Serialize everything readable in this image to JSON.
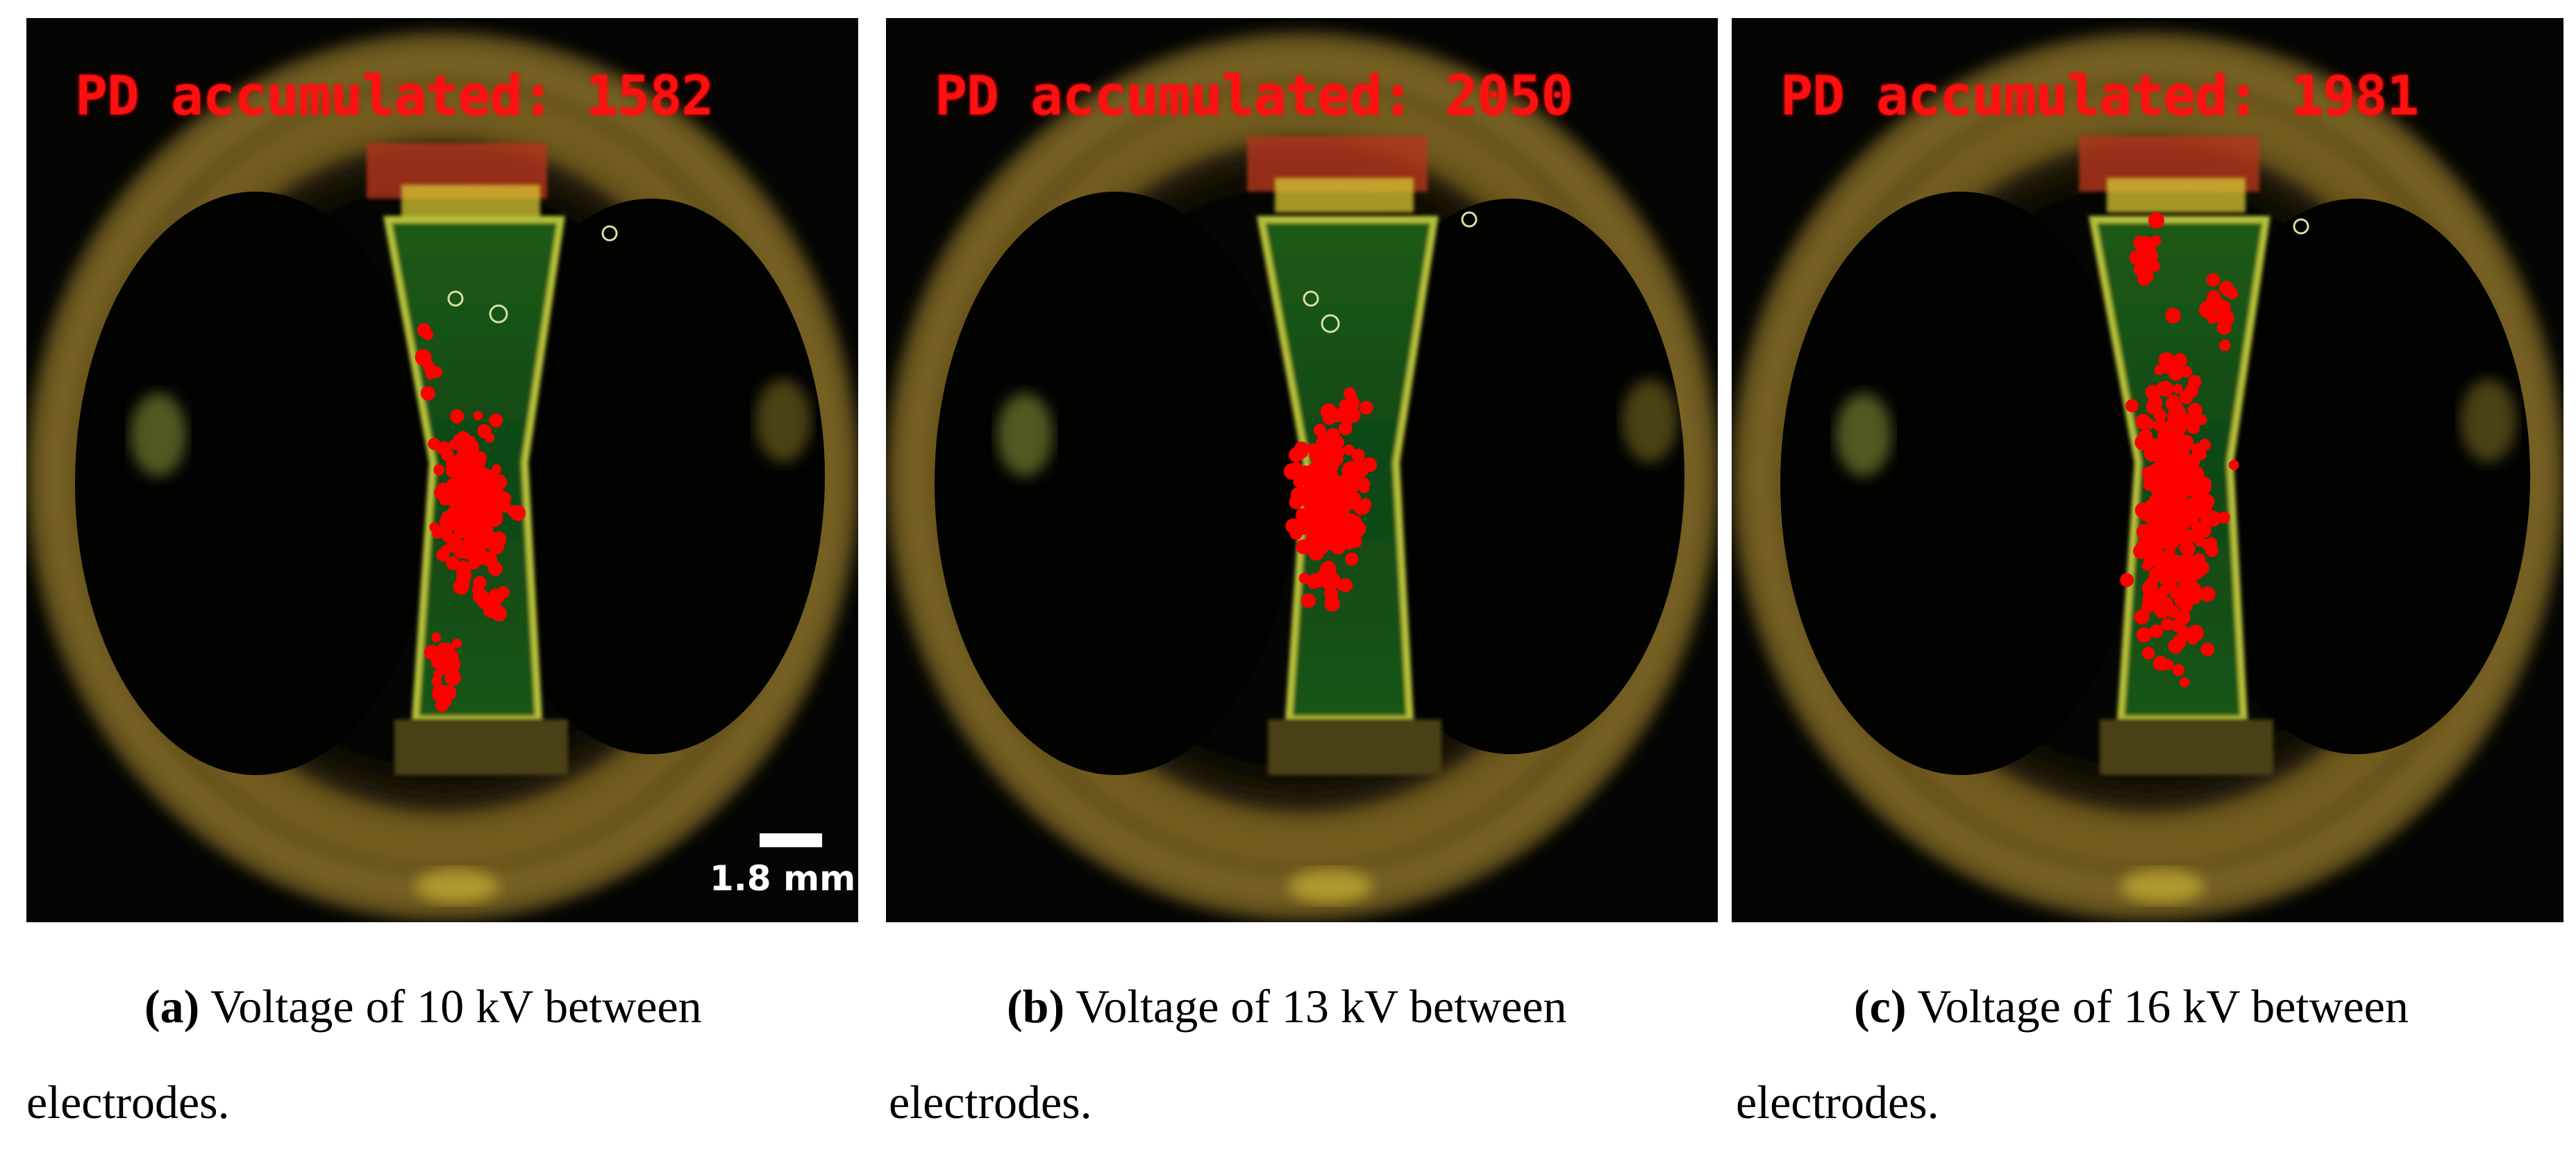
{
  "panels": [
    {
      "id": "a",
      "overlay_text": "PD accumulated: 1582",
      "caption_tag": "(a)",
      "caption_text": "Voltage of 10 kV between",
      "caption_text_line2": "electrodes."
    },
    {
      "id": "b",
      "overlay_text": "PD accumulated: 2050",
      "caption_tag": "(b)",
      "caption_text": "Voltage of 13 kV between",
      "caption_text_line2": "electrodes."
    },
    {
      "id": "c",
      "overlay_text": "PD accumulated: 1981",
      "caption_tag": "(c)",
      "caption_text": "Voltage of 16 kV between",
      "caption_text_line2": "electrodes."
    }
  ],
  "scale_bar": {
    "label": "1.8 mm"
  },
  "colors": {
    "overlay_text": "#ff1010",
    "pd_marker": "#ff0000",
    "background": "#050503",
    "rim": "#6b5a1c",
    "channel": "#0f4a12"
  }
}
